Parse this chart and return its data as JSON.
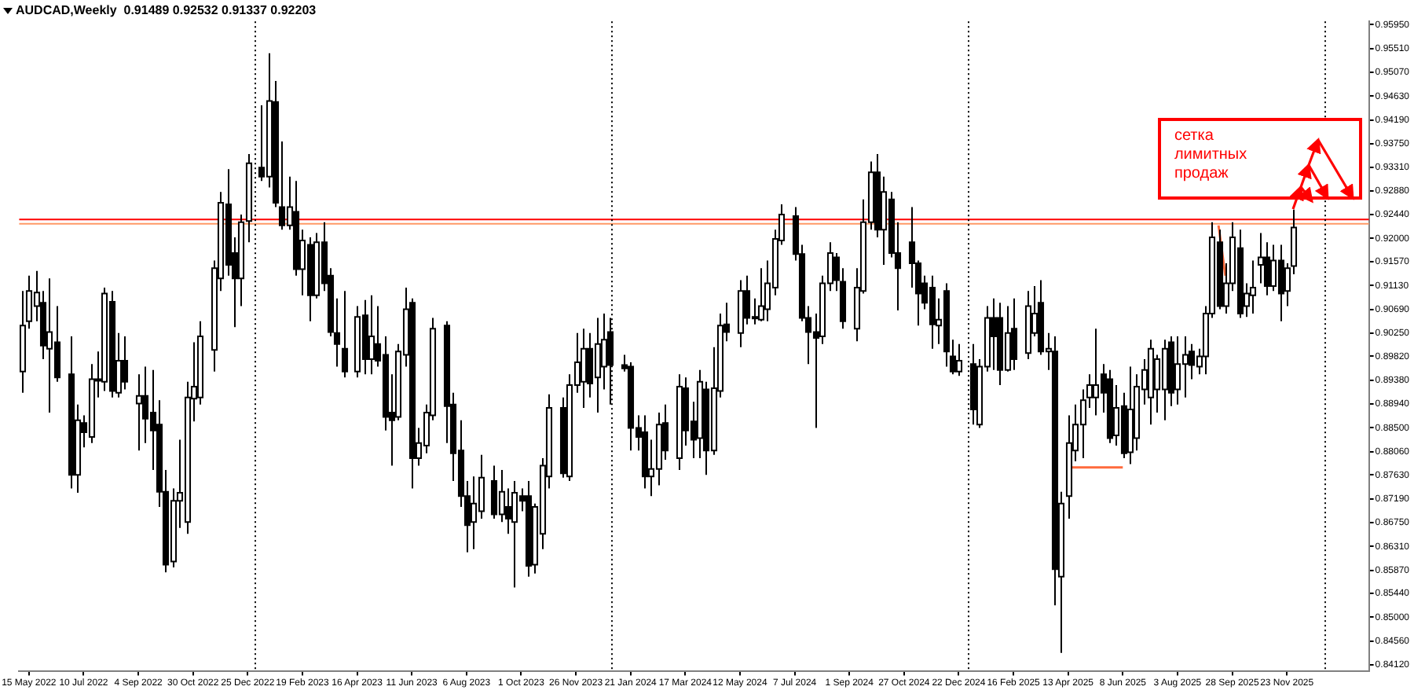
{
  "chart_data": {
    "type": "candlestick",
    "title": "AUDCAD,Weekly  0.91489 0.92532 0.91337 0.92203",
    "colors": [
      "#ffffff",
      "#ffffff",
      "#ffffff",
      "#000000",
      "#ffffff",
      "#000000",
      "#000000",
      "#ffffff",
      "#000000",
      "#ffffff",
      "#000000",
      "#ffffff",
      "#000000",
      "#ffffff",
      "#000000",
      "#ffffff",
      "#000000",
      "#000000",
      "#000000",
      "#000000",
      "#ffffff",
      "#ffffff",
      "#ffffff",
      "#ffffff",
      "#ffffff",
      "#ffffff",
      "#ffffff",
      "#000000",
      "#000000",
      "#ffffff",
      "#ffffff",
      "#000000",
      "#ffffff",
      "#000000",
      "#000000",
      "#ffffff",
      "#000000",
      "#ffffff",
      "#000000",
      "#ffffff",
      "#000000",
      "#000000",
      "#000000",
      "#000000",
      "#ffffff",
      "#000000",
      "#ffffff",
      "#000000",
      "#000000",
      "#000000",
      "#ffffff",
      "#ffffff",
      "#000000",
      "#ffffff",
      "#ffffff",
      "#ffffff",
      "#000000",
      "#000000",
      "#000000",
      "#000000",
      "#ffffff",
      "#ffffff",
      "#000000",
      "#ffffff",
      "#000000",
      "#ffffff",
      "#000000",
      "#000000",
      "#ffffff",
      "#ffffff",
      "#ffffff",
      "#000000",
      "#ffffff",
      "#ffffff",
      "#ffffff",
      "#000000",
      "#ffffff",
      "#ffffff",
      "#000000",
      "#000000",
      "#000000",
      "#000000",
      "#000000",
      "#ffffff",
      "#ffffff",
      "#000000",
      "#ffffff",
      "#000000",
      "#000000",
      "#ffffff",
      "#000000",
      "#ffffff",
      "#ffffff",
      "#000000",
      "#ffffff",
      "#000000",
      "#ffffff",
      "#ffffff",
      "#ffffff",
      "#ffffff",
      "#ffffff",
      "#000000",
      "#000000",
      "#000000",
      "#000000",
      "#ffffff",
      "#ffffff",
      "#000000",
      "#000000",
      "#ffffff",
      "#ffffff",
      "#ffffff",
      "#000000",
      "#ffffff",
      "#000000",
      "#000000",
      "#000000",
      "#000000",
      "#000000",
      "#000000",
      "#ffffff",
      "#000000",
      "#000000",
      "#ffffff",
      "#000000",
      "#ffffff",
      "#ffffff",
      "#000000",
      "#000000",
      "#ffffff",
      "#000000",
      "#ffffff",
      "#ffffff",
      "#000000",
      "#ffffff",
      "#000000",
      "#ffffff",
      "#ffffff",
      "#ffffff",
      "#ffffff",
      "#ffffff",
      "#ffffff",
      "#000000",
      "#000000",
      "#ffffff",
      "#000000",
      "#ffffff",
      "#ffffff",
      "#ffffff",
      "#ffffff",
      "#ffffff",
      "#ffffff",
      "#000000",
      "#ffffff",
      "#ffffff",
      "#000000",
      "#ffffff",
      "#ffffff",
      "#ffffff",
      "#000000",
      "#ffffff",
      "#ffffff",
      "#000000",
      "#ffffff",
      "#ffffff",
      "#ffffff",
      "#000000",
      "#ffffff",
      "#000000",
      "#ffffff",
      "#ffffff"
    ],
    "grid": false,
    "legend": false,
    "x": [
      "2022-05-08",
      "2022-05-15",
      "2022-05-22",
      "2022-05-29",
      "2022-06-05",
      "2022-06-12",
      "2022-06-26",
      "2022-07-03",
      "2022-07-10",
      "2022-07-17",
      "2022-07-24",
      "2022-07-31",
      "2022-08-07",
      "2022-08-14",
      "2022-08-21",
      "2022-09-04",
      "2022-09-11",
      "2022-09-18",
      "2022-09-25",
      "2022-10-02",
      "2022-10-09",
      "2022-10-16",
      "2022-10-23",
      "2022-10-30",
      "2022-11-06",
      "2022-11-20",
      "2022-11-27",
      "2022-12-04",
      "2022-12-11",
      "2022-12-18",
      "2022-12-25",
      "2023-01-08",
      "2023-01-15",
      "2023-01-22",
      "2023-01-29",
      "2023-02-05",
      "2023-02-12",
      "2023-02-19",
      "2023-02-26",
      "2023-03-05",
      "2023-03-12",
      "2023-03-19",
      "2023-03-26",
      "2023-04-02",
      "2023-04-16",
      "2023-04-23",
      "2023-04-30",
      "2023-05-07",
      "2023-05-14",
      "2023-05-21",
      "2023-05-28",
      "2023-06-04",
      "2023-06-11",
      "2023-06-18",
      "2023-06-25",
      "2023-07-02",
      "2023-07-16",
      "2023-07-23",
      "2023-07-30",
      "2023-08-06",
      "2023-08-13",
      "2023-08-20",
      "2023-09-03",
      "2023-09-10",
      "2023-09-17",
      "2023-09-24",
      "2023-10-01",
      "2023-10-08",
      "2023-10-15",
      "2023-10-22",
      "2023-10-29",
      "2023-11-12",
      "2023-11-19",
      "2023-11-26",
      "2023-12-03",
      "2023-12-10",
      "2023-12-17",
      "2023-12-24",
      "2023-12-31",
      "2024-01-14",
      "2024-01-21",
      "2024-01-28",
      "2024-02-04",
      "2024-02-11",
      "2024-02-18",
      "2024-02-25",
      "2024-03-10",
      "2024-03-17",
      "2024-03-24",
      "2024-03-31",
      "2024-04-07",
      "2024-04-14",
      "2024-04-21",
      "2024-04-28",
      "2024-05-12",
      "2024-05-19",
      "2024-05-26",
      "2024-06-02",
      "2024-06-09",
      "2024-06-16",
      "2024-06-23",
      "2024-07-07",
      "2024-07-14",
      "2024-07-21",
      "2024-07-28",
      "2024-08-04",
      "2024-08-11",
      "2024-08-18",
      "2024-08-25",
      "2024-09-08",
      "2024-09-15",
      "2024-09-22",
      "2024-09-29",
      "2024-10-06",
      "2024-10-13",
      "2024-10-20",
      "2024-11-03",
      "2024-11-10",
      "2024-11-17",
      "2024-11-24",
      "2024-12-01",
      "2024-12-08",
      "2024-12-15",
      "2024-12-22",
      "2025-01-05",
      "2025-01-12",
      "2025-01-19",
      "2025-01-26",
      "2025-02-02",
      "2025-02-09",
      "2025-02-16",
      "2025-03-02",
      "2025-03-09",
      "2025-03-16",
      "2025-03-23",
      "2025-03-30",
      "2025-04-06",
      "2025-04-13",
      "2025-04-20",
      "2025-04-27",
      "2025-05-04",
      "2025-05-11",
      "2025-05-18",
      "2025-05-25",
      "2025-06-01",
      "2025-06-08",
      "2025-06-15",
      "2025-06-22",
      "2025-06-29",
      "2025-07-06",
      "2025-07-13",
      "2025-07-20",
      "2025-07-27",
      "2025-08-03",
      "2025-08-10",
      "2025-08-17",
      "2025-08-24",
      "2025-08-31",
      "2025-09-07",
      "2025-09-14",
      "2025-09-21",
      "2025-09-28",
      "2025-10-05",
      "2025-10-12",
      "2025-10-19",
      "2025-10-26",
      "2025-11-02",
      "2025-11-09",
      "2025-11-16",
      "2025-11-23",
      "2025-11-30"
    ],
    "ohlc": [
      [
        0.8954,
        0.9103,
        0.8915,
        0.9039
      ],
      [
        0.9047,
        0.9131,
        0.9033,
        0.9103
      ],
      [
        0.9075,
        0.914,
        0.9047,
        0.91
      ],
      [
        0.9081,
        0.9103,
        0.8977,
        0.9002
      ],
      [
        0.8996,
        0.9126,
        0.8878,
        0.9027
      ],
      [
        0.9008,
        0.9075,
        0.8935,
        0.8943
      ],
      [
        0.8949,
        0.9019,
        0.8738,
        0.8763
      ],
      [
        0.8763,
        0.8893,
        0.873,
        0.8864
      ],
      [
        0.8859,
        0.8873,
        0.8814,
        0.8842
      ],
      [
        0.8833,
        0.8968,
        0.8822,
        0.894
      ],
      [
        0.894,
        0.8991,
        0.8906,
        0.8937
      ],
      [
        0.8935,
        0.9109,
        0.8918,
        0.9098
      ],
      [
        0.9083,
        0.9103,
        0.8906,
        0.8918
      ],
      [
        0.8915,
        0.9025,
        0.8906,
        0.8974
      ],
      [
        0.8974,
        0.9019,
        0.8921,
        0.8935
      ],
      [
        0.8895,
        0.8949,
        0.8808,
        0.8909
      ],
      [
        0.8909,
        0.8963,
        0.8822,
        0.8867
      ],
      [
        0.8878,
        0.8957,
        0.8772,
        0.8845
      ],
      [
        0.8856,
        0.8901,
        0.8704,
        0.8732
      ],
      [
        0.8732,
        0.8772,
        0.8583,
        0.8597
      ],
      [
        0.8603,
        0.8738,
        0.8592,
        0.8715
      ],
      [
        0.8715,
        0.8828,
        0.8665,
        0.873
      ],
      [
        0.8676,
        0.8935,
        0.8654,
        0.8906
      ],
      [
        0.8904,
        0.9008,
        0.8862,
        0.8926
      ],
      [
        0.8906,
        0.9047,
        0.8893,
        0.9019
      ],
      [
        0.8994,
        0.9159,
        0.8954,
        0.9145
      ],
      [
        0.9126,
        0.9286,
        0.9103,
        0.9266
      ],
      [
        0.9263,
        0.9328,
        0.9131,
        0.9151
      ],
      [
        0.9173,
        0.9202,
        0.9036,
        0.9126
      ],
      [
        0.9126,
        0.9244,
        0.9075,
        0.923
      ],
      [
        0.9232,
        0.9356,
        0.9193,
        0.9339
      ],
      [
        0.9331,
        0.9446,
        0.9306,
        0.9314
      ],
      [
        0.9314,
        0.9542,
        0.9294,
        0.9454
      ],
      [
        0.9452,
        0.9491,
        0.9258,
        0.9266
      ],
      [
        0.9258,
        0.9379,
        0.9216,
        0.9224
      ],
      [
        0.9224,
        0.9314,
        0.9216,
        0.9258
      ],
      [
        0.9249,
        0.9306,
        0.9131,
        0.9143
      ],
      [
        0.9143,
        0.9216,
        0.9095,
        0.9196
      ],
      [
        0.9188,
        0.9202,
        0.9047,
        0.9095
      ],
      [
        0.9095,
        0.921,
        0.9089,
        0.9193
      ],
      [
        0.9193,
        0.923,
        0.9103,
        0.9117
      ],
      [
        0.9131,
        0.9145,
        0.9019,
        0.9027
      ],
      [
        0.9025,
        0.9089,
        0.8963,
        0.9005
      ],
      [
        0.8996,
        0.9103,
        0.8943,
        0.8954
      ],
      [
        0.8954,
        0.9075,
        0.8943,
        0.9055
      ],
      [
        0.9058,
        0.9086,
        0.8949,
        0.8977
      ],
      [
        0.8977,
        0.9095,
        0.8949,
        0.9019
      ],
      [
        0.9005,
        0.9075,
        0.8963,
        0.8974
      ],
      [
        0.8985,
        0.9019,
        0.8845,
        0.887
      ],
      [
        0.8878,
        0.8949,
        0.878,
        0.8864
      ],
      [
        0.887,
        0.9005,
        0.8864,
        0.8991
      ],
      [
        0.8985,
        0.9109,
        0.8963,
        0.9069
      ],
      [
        0.9081,
        0.9089,
        0.8738,
        0.8794
      ],
      [
        0.8794,
        0.885,
        0.878,
        0.8822
      ],
      [
        0.8817,
        0.8893,
        0.8803,
        0.8878
      ],
      [
        0.8873,
        0.9053,
        0.8864,
        0.9033
      ],
      [
        0.9039,
        0.9047,
        0.8822,
        0.889
      ],
      [
        0.8893,
        0.8915,
        0.8752,
        0.8803
      ],
      [
        0.8808,
        0.8864,
        0.8704,
        0.8724
      ],
      [
        0.8724,
        0.8752,
        0.862,
        0.867
      ],
      [
        0.8676,
        0.876,
        0.8626,
        0.871
      ],
      [
        0.8696,
        0.88,
        0.8682,
        0.8758
      ],
      [
        0.8752,
        0.878,
        0.8682,
        0.869
      ],
      [
        0.869,
        0.8772,
        0.8676,
        0.8732
      ],
      [
        0.8704,
        0.8738,
        0.8654,
        0.8682
      ],
      [
        0.8676,
        0.8752,
        0.8555,
        0.873
      ],
      [
        0.8724,
        0.8738,
        0.8696,
        0.8715
      ],
      [
        0.8724,
        0.8752,
        0.8575,
        0.8595
      ],
      [
        0.8597,
        0.871,
        0.8581,
        0.8704
      ],
      [
        0.8654,
        0.8794,
        0.8626,
        0.878
      ],
      [
        0.876,
        0.8912,
        0.8738,
        0.8887
      ],
      [
        0.8887,
        0.8906,
        0.8758,
        0.8766
      ],
      [
        0.876,
        0.8949,
        0.8752,
        0.8929
      ],
      [
        0.8929,
        0.9025,
        0.8915,
        0.8971
      ],
      [
        0.8935,
        0.9033,
        0.8887,
        0.8996
      ],
      [
        0.8996,
        0.9025,
        0.8906,
        0.8932
      ],
      [
        0.8943,
        0.9053,
        0.8878,
        0.9005
      ],
      [
        0.8963,
        0.9061,
        0.8921,
        0.9013
      ],
      [
        0.9027,
        0.9053,
        0.8893,
        0.8966
      ],
      [
        0.8966,
        0.8985,
        0.8954,
        0.896
      ],
      [
        0.8963,
        0.8971,
        0.8808,
        0.885
      ],
      [
        0.885,
        0.8873,
        0.8808,
        0.8833
      ],
      [
        0.8842,
        0.8873,
        0.8738,
        0.876
      ],
      [
        0.876,
        0.8828,
        0.8724,
        0.8774
      ],
      [
        0.8774,
        0.8878,
        0.8744,
        0.8856
      ],
      [
        0.8859,
        0.8893,
        0.8791,
        0.8808
      ],
      [
        0.8794,
        0.8949,
        0.8772,
        0.8926
      ],
      [
        0.8923,
        0.8943,
        0.8817,
        0.8845
      ],
      [
        0.8862,
        0.8898,
        0.8794,
        0.8828
      ],
      [
        0.8831,
        0.8957,
        0.8794,
        0.8935
      ],
      [
        0.8921,
        0.8935,
        0.8763,
        0.8808
      ],
      [
        0.8808,
        0.8999,
        0.88,
        0.8923
      ],
      [
        0.8918,
        0.9061,
        0.8906,
        0.9039
      ],
      [
        0.9041,
        0.9081,
        0.901,
        0.9027
      ],
      [
        0.9025,
        0.9123,
        0.8999,
        0.9103
      ],
      [
        0.9103,
        0.9131,
        0.9041,
        0.9053
      ],
      [
        0.9053,
        0.9089,
        0.9041,
        0.9055
      ],
      [
        0.905,
        0.9145,
        0.9047,
        0.9075
      ],
      [
        0.9069,
        0.9159,
        0.9047,
        0.9117
      ],
      [
        0.9109,
        0.9216,
        0.9095,
        0.9199
      ],
      [
        0.9196,
        0.9263,
        0.9188,
        0.9244
      ],
      [
        0.9241,
        0.9258,
        0.9159,
        0.9171
      ],
      [
        0.9171,
        0.9188,
        0.9047,
        0.9053
      ],
      [
        0.9053,
        0.9075,
        0.8968,
        0.9027
      ],
      [
        0.9027,
        0.9061,
        0.885,
        0.9016
      ],
      [
        0.9019,
        0.9131,
        0.9005,
        0.9117
      ],
      [
        0.9117,
        0.9193,
        0.9103,
        0.9173
      ],
      [
        0.9165,
        0.9173,
        0.9103,
        0.9123
      ],
      [
        0.912,
        0.9145,
        0.9033,
        0.9047
      ],
      [
        0.9033,
        0.9145,
        0.901,
        0.9109
      ],
      [
        0.9103,
        0.9272,
        0.9098,
        0.923
      ],
      [
        0.923,
        0.9342,
        0.9216,
        0.9322
      ],
      [
        0.9322,
        0.9356,
        0.9202,
        0.9216
      ],
      [
        0.9216,
        0.9314,
        0.9151,
        0.9286
      ],
      [
        0.9272,
        0.9286,
        0.9165,
        0.9173
      ],
      [
        0.9173,
        0.923,
        0.9067,
        0.9145
      ],
      [
        0.9193,
        0.9258,
        0.9109,
        0.9154
      ],
      [
        0.9154,
        0.9159,
        0.9039,
        0.9098
      ],
      [
        0.9117,
        0.9131,
        0.9069,
        0.9081
      ],
      [
        0.9109,
        0.9131,
        0.8996,
        0.9041
      ],
      [
        0.9039,
        0.9089,
        0.9005,
        0.905
      ],
      [
        0.9103,
        0.9117,
        0.8963,
        0.8991
      ],
      [
        0.8982,
        0.9013,
        0.8949,
        0.8954
      ],
      [
        0.8954,
        0.9005,
        0.8946,
        0.8974
      ],
      [
        0.8968,
        0.9005,
        0.8856,
        0.8884
      ],
      [
        0.8856,
        0.8977,
        0.885,
        0.8963
      ],
      [
        0.8963,
        0.9075,
        0.8954,
        0.9053
      ],
      [
        0.9053,
        0.9089,
        0.8957,
        0.9019
      ],
      [
        0.9053,
        0.9081,
        0.8929,
        0.8957
      ],
      [
        0.8957,
        0.9075,
        0.8954,
        0.9025
      ],
      [
        0.9033,
        0.9089,
        0.8957,
        0.8977
      ],
      [
        0.8988,
        0.9103,
        0.8977,
        0.9075
      ],
      [
        0.9025,
        0.9112,
        0.9019,
        0.9061
      ],
      [
        0.9081,
        0.9123,
        0.8985,
        0.8991
      ],
      [
        0.8991,
        0.9025,
        0.8957,
        0.8996
      ],
      [
        0.8991,
        0.9019,
        0.8522,
        0.8589
      ],
      [
        0.8575,
        0.8732,
        0.8434,
        0.871
      ],
      [
        0.8724,
        0.8873,
        0.8682,
        0.8822
      ],
      [
        0.8808,
        0.8893,
        0.8788,
        0.8856
      ],
      [
        0.8856,
        0.8921,
        0.8794,
        0.8901
      ],
      [
        0.8906,
        0.8949,
        0.8887,
        0.8929
      ],
      [
        0.8906,
        0.9033,
        0.8873,
        0.8929
      ],
      [
        0.8949,
        0.8968,
        0.8878,
        0.8915
      ],
      [
        0.894,
        0.8957,
        0.8822,
        0.8831
      ],
      [
        0.8836,
        0.8929,
        0.8817,
        0.8887
      ],
      [
        0.889,
        0.8915,
        0.8794,
        0.8803
      ],
      [
        0.8805,
        0.8963,
        0.8783,
        0.8884
      ],
      [
        0.8831,
        0.8949,
        0.8808,
        0.8926
      ],
      [
        0.8921,
        0.8977,
        0.8893,
        0.8957
      ],
      [
        0.8906,
        0.9013,
        0.8856,
        0.8996
      ],
      [
        0.8921,
        0.8985,
        0.8878,
        0.8977
      ],
      [
        0.8921,
        0.9013,
        0.8864,
        0.8996
      ],
      [
        0.9008,
        0.9019,
        0.889,
        0.8915
      ],
      [
        0.8921,
        0.9019,
        0.8893,
        0.8968
      ],
      [
        0.8968,
        0.9019,
        0.8906,
        0.8985
      ],
      [
        0.8991,
        0.9005,
        0.894,
        0.8966
      ],
      [
        0.8963,
        0.8996,
        0.8949,
        0.8982
      ],
      [
        0.8982,
        0.9075,
        0.8949,
        0.9061
      ],
      [
        0.9061,
        0.923,
        0.9053,
        0.9202
      ],
      [
        0.9193,
        0.9216,
        0.9069,
        0.9075
      ],
      [
        0.9075,
        0.9154,
        0.9061,
        0.9117
      ],
      [
        0.9117,
        0.923,
        0.9103,
        0.9202
      ],
      [
        0.9182,
        0.9216,
        0.9053,
        0.9061
      ],
      [
        0.9075,
        0.9117,
        0.9055,
        0.9098
      ],
      [
        0.9095,
        0.9159,
        0.9061,
        0.9109
      ],
      [
        0.9151,
        0.921,
        0.9117,
        0.9165
      ],
      [
        0.9165,
        0.9193,
        0.9095,
        0.9112
      ],
      [
        0.9112,
        0.9188,
        0.9103,
        0.9159
      ],
      [
        0.9159,
        0.9188,
        0.9047,
        0.9098
      ],
      [
        0.9103,
        0.9154,
        0.9075,
        0.9145
      ],
      [
        0.91489,
        0.92532,
        0.91337,
        0.92203
      ]
    ],
    "series": [
      {
        "type": "line",
        "color": "#ff6a3d",
        "x": [
          "2025-04-13",
          "2025-06-08"
        ],
        "values": [
          0.8777,
          0.8777
        ]
      },
      {
        "type": "line",
        "color": "#ff6a3d",
        "x": [
          "2025-09-14",
          "2025-09-21"
        ],
        "values": [
          0.9224,
          0.9131
        ]
      }
    ],
    "ref_lines": [
      {
        "axis": "y",
        "value": 0.9235,
        "color": "#ff0000",
        "line_style": "solid"
      },
      {
        "axis": "y",
        "value": 0.9227,
        "color": "#ff9966",
        "line_style": "solid"
      },
      {
        "axis": "x",
        "value": "2023-01-01",
        "color": "#000000",
        "line_style": "dotted"
      },
      {
        "axis": "x",
        "value": "2024-01-01",
        "color": "#000000",
        "line_style": "dotted"
      },
      {
        "axis": "x",
        "value": "2025-01-01",
        "color": "#000000",
        "line_style": "dotted"
      },
      {
        "axis": "x",
        "value": "2026-01-01",
        "color": "#000000",
        "line_style": "dotted"
      }
    ],
    "annotations": [
      "сетка лимитных продаж"
    ],
    "xlim": [
      "2022-05-05",
      "2026-02-15"
    ],
    "xticks": [
      {
        "value": "2022-05-15",
        "label": "15 May 2022"
      },
      {
        "value": "2022-07-10",
        "label": "10 Jul 2022"
      },
      {
        "value": "2022-09-04",
        "label": "4 Sep 2022"
      },
      {
        "value": "2022-10-30",
        "label": "30 Oct 2022"
      },
      {
        "value": "2022-12-25",
        "label": "25 Dec 2022"
      },
      {
        "value": "2023-02-19",
        "label": "19 Feb 2023"
      },
      {
        "value": "2023-04-16",
        "label": "16 Apr 2023"
      },
      {
        "value": "2023-06-11",
        "label": "11 Jun 2023"
      },
      {
        "value": "2023-08-06",
        "label": "6 Aug 2023"
      },
      {
        "value": "2023-10-01",
        "label": "1 Oct 2023"
      },
      {
        "value": "2023-11-26",
        "label": "26 Nov 2023"
      },
      {
        "value": "2024-01-21",
        "label": "21 Jan 2024"
      },
      {
        "value": "2024-03-17",
        "label": "17 Mar 2024"
      },
      {
        "value": "2024-05-12",
        "label": "12 May 2024"
      },
      {
        "value": "2024-07-07",
        "label": "7 Jul 2024"
      },
      {
        "value": "2024-09-01",
        "label": "1 Sep 2024"
      },
      {
        "value": "2024-10-27",
        "label": "27 Oct 2024"
      },
      {
        "value": "2024-12-22",
        "label": "22 Dec 2024"
      },
      {
        "value": "2025-02-16",
        "label": "16 Feb 2025"
      },
      {
        "value": "2025-04-13",
        "label": "13 Apr 2025"
      },
      {
        "value": "2025-06-08",
        "label": "8 Jun 2025"
      },
      {
        "value": "2025-08-03",
        "label": "3 Aug 2025"
      },
      {
        "value": "2025-09-28",
        "label": "28 Sep 2025"
      },
      {
        "value": "2025-11-23",
        "label": "23 Nov 2025"
      }
    ],
    "ylim": [
      0.8401,
      0.9601
    ],
    "yticks": [
      {
        "value": 0.9595,
        "label": "0.95950"
      },
      {
        "value": 0.9551,
        "label": "0.95510"
      },
      {
        "value": 0.9507,
        "label": "0.95070"
      },
      {
        "value": 0.9463,
        "label": "0.94630"
      },
      {
        "value": 0.9419,
        "label": "0.94190"
      },
      {
        "value": 0.9375,
        "label": "0.93750"
      },
      {
        "value": 0.9331,
        "label": "0.93310"
      },
      {
        "value": 0.9288,
        "label": "0.92880"
      },
      {
        "value": 0.9244,
        "label": "0.92440"
      },
      {
        "value": 0.92,
        "label": "0.92000"
      },
      {
        "value": 0.9157,
        "label": "0.91570"
      },
      {
        "value": 0.9113,
        "label": "0.91130"
      },
      {
        "value": 0.9069,
        "label": "0.90690"
      },
      {
        "value": 0.9025,
        "label": "0.90250"
      },
      {
        "value": 0.8982,
        "label": "0.89820"
      },
      {
        "value": 0.8938,
        "label": "0.89380"
      },
      {
        "value": 0.8894,
        "label": "0.88940"
      },
      {
        "value": 0.885,
        "label": "0.88500"
      },
      {
        "value": 0.8806,
        "label": "0.88060"
      },
      {
        "value": 0.8763,
        "label": "0.87630"
      },
      {
        "value": 0.8719,
        "label": "0.87190"
      },
      {
        "value": 0.8675,
        "label": "0.86750"
      },
      {
        "value": 0.8631,
        "label": "0.86310"
      },
      {
        "value": 0.8587,
        "label": "0.85870"
      },
      {
        "value": 0.8544,
        "label": "0.85440"
      },
      {
        "value": 0.85,
        "label": "0.85000"
      },
      {
        "value": 0.8456,
        "label": "0.84560"
      },
      {
        "value": 0.8412,
        "label": "0.84120"
      }
    ]
  }
}
